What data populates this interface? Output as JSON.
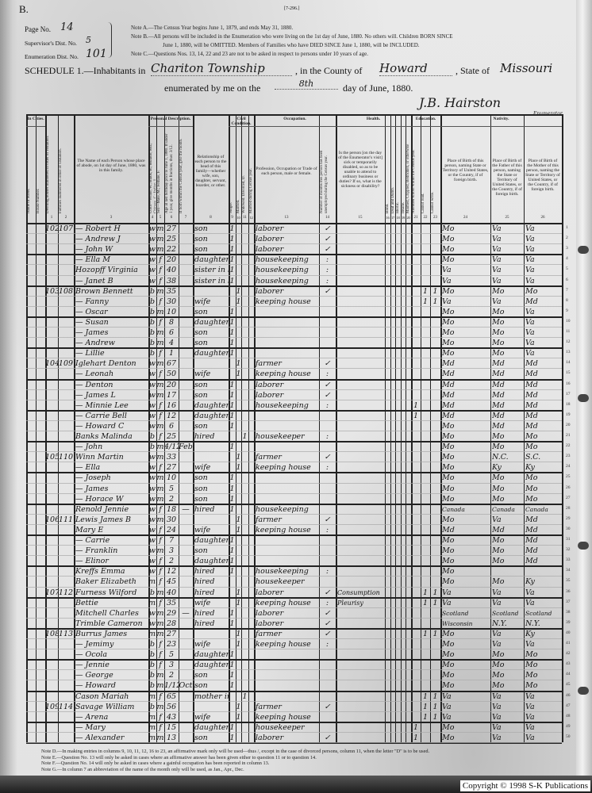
{
  "form": {
    "letter": "B.",
    "form_number": "[7-296.]",
    "page_label": "Page No.",
    "page_value": "14",
    "supervisor_label": "Supervisor's Dist. No.",
    "supervisor_value": "5",
    "enumeration_label": "Enumeration Dist. No.",
    "enumeration_value": "101",
    "note_a": "Note A.—The Census Year begins June 1, 1879, and ends May 31, 1880.",
    "note_b1": "Note B.—All persons will be included in the Enumeration who were living on the 1st day of June, 1880. No others will. Children BORN SINCE",
    "note_b2": "June 1, 1880, will be OMITTED. Members of Families who have DIED SINCE June 1, 1880, will be INCLUDED.",
    "note_c": "Note C.—Questions Nos. 13, 14, 22 and 23 are not to be asked in respect to persons under 10 years of age.",
    "schedule_label": "SCHEDULE 1.—Inhabitants in",
    "township": "Chariton Township",
    "county_label": ", in the County of",
    "county": "Howard",
    "state_label": ", State of",
    "state": "Missouri",
    "enumerated_label": "enumerated by me on the",
    "day": "8th",
    "date_suffix": "day of June, 1880.",
    "enumerator_signature": "J.B. Hairston",
    "enumerator_label": "Enumerator."
  },
  "headers": {
    "in_cities": "In Cities.",
    "street": "Name of Street.",
    "house": "House Number.",
    "dwelling": "Dwelling houses numbered in order of visitation.",
    "family": "Families numbered in order of visitation.",
    "name": "The Name of each Person whose place of abode, on 1st day of June, 1880, was in this family.",
    "personal": "Personal Description.",
    "color": "Color—White, W.; Black, B.; Mulatto, Mu.; Chinese, C.; Indian, I.",
    "sex": "Sex—Male, M.; Female, F.",
    "age": "Age at last birthday prior to June 1, 1880. If under 1 year, give months in fractions, thus: 3/12.",
    "month": "If born within the Census year, give the month.",
    "relation": "Relationship of each person to the head of this family—whether wife, son, daughter, servant, boarder, or other.",
    "civil": "Civil Condition.",
    "single": "Single.",
    "married": "Married.",
    "widowed": "Widowed. Divorced, D.",
    "married_year": "Married during Census year.",
    "occupation_group": "Occupation.",
    "occupation": "Profession, Occupation or Trade of each person, male or female.",
    "unemployed": "Number of months this person has been unemployed during the Census year.",
    "health": "Health.",
    "sickness": "Is the person [on the day of the Enumerator's visit] sick or temporarily disabled, so as to be unable to attend to ordinary business or duties? If so, what is the sickness or disability?",
    "blind": "Blind.",
    "deaf": "Deaf and Dumb.",
    "idiotic": "Idiotic.",
    "insane": "Insane.",
    "maimed": "Maimed, Crippled, Bedridden, or otherwise disabled.",
    "education": "Education.",
    "school": "Attended school within the Census year.",
    "cannot_read": "Cannot read.",
    "cannot_write": "Cannot write.",
    "nativity": "Nativity.",
    "birthplace": "Place of Birth of this person, naming State or Territory of United States, or the Country, if of foreign birth.",
    "father_birthplace": "Place of Birth of the Father of this person, naming the State or Territory of United States, or the Country, if of foreign birth.",
    "mother_birthplace": "Place of Birth of the Mother of this person, naming the State or Territory of United States, or the Country, if of foreign birth."
  },
  "column_numbers": [
    "1",
    "2",
    "3",
    "4",
    "5",
    "6",
    "7",
    "8",
    "9",
    "10",
    "11",
    "12",
    "13",
    "14",
    "15",
    "16",
    "17",
    "18",
    "19",
    "20",
    "21",
    "22",
    "23",
    "24",
    "25",
    "26"
  ],
  "rows": [
    {
      "d": "102",
      "f": "107",
      "name": "— Robert H",
      "color": "w",
      "sex": "m",
      "age": "27",
      "rel": "son",
      "s": "1",
      "occ": "laborer",
      "chk": "✓",
      "bp": "Mo",
      "fbp": "Va",
      "mbp": "Va"
    },
    {
      "name": "— Andrew J",
      "color": "w",
      "sex": "m",
      "age": "25",
      "rel": "son",
      "s": "1",
      "occ": "laborer",
      "chk": "✓",
      "bp": "Mo",
      "fbp": "Va",
      "mbp": "Va"
    },
    {
      "name": "— John W",
      "color": "w",
      "sex": "m",
      "age": "22",
      "rel": "son",
      "s": "1",
      "occ": "laborer",
      "chk": "✓",
      "bp": "Mo",
      "fbp": "Va",
      "mbp": "Va"
    },
    {
      "name": "— Ella M",
      "color": "w",
      "sex": "f",
      "age": "20",
      "rel": "daughter",
      "s": "1",
      "occ": "housekeeping",
      "chk": ":",
      "bp": "Mo",
      "fbp": "Va",
      "mbp": "Va"
    },
    {
      "name": "Hozopff Virginia",
      "color": "w",
      "sex": "f",
      "age": "40",
      "rel": "sister in law",
      "s": "1",
      "occ": "housekeeping",
      "chk": ":",
      "bp": "Va",
      "fbp": "Va",
      "mbp": "Va"
    },
    {
      "name": "— Janet B",
      "color": "w",
      "sex": "f",
      "age": "38",
      "rel": "sister in law",
      "s": "1",
      "occ": "housekeeping",
      "chk": ":",
      "bp": "Va",
      "fbp": "Va",
      "mbp": "Va"
    },
    {
      "d": "103",
      "f": "108",
      "name": "Brown Bennett",
      "color": "b",
      "sex": "m",
      "age": "35",
      "m": "1",
      "occ": "laborer",
      "chk": "✓",
      "rd": "1",
      "wr": "1",
      "bp": "Mo",
      "fbp": "Mo",
      "mbp": "Mo"
    },
    {
      "name": "— Fanny",
      "color": "b",
      "sex": "f",
      "age": "30",
      "rel": "wife",
      "m": "1",
      "occ": "keeping house",
      "rd": "1",
      "wr": "1",
      "bp": "Va",
      "fbp": "Va",
      "mbp": "Md"
    },
    {
      "name": "— Oscar",
      "color": "b",
      "sex": "m",
      "age": "10",
      "rel": "son",
      "s": "1",
      "bp": "Mo",
      "fbp": "Mo",
      "mbp": "Va"
    },
    {
      "name": "— Susan",
      "color": "b",
      "sex": "f",
      "age": "8",
      "rel": "daughter",
      "s": "1",
      "bp": "Mo",
      "fbp": "Mo",
      "mbp": "Va"
    },
    {
      "name": "— James",
      "color": "b",
      "sex": "m",
      "age": "6",
      "rel": "son",
      "s": "1",
      "bp": "Mo",
      "fbp": "Mo",
      "mbp": "Va"
    },
    {
      "name": "— Andrew",
      "color": "b",
      "sex": "m",
      "age": "4",
      "rel": "son",
      "s": "1",
      "bp": "Mo",
      "fbp": "Mo",
      "mbp": "Va"
    },
    {
      "name": "— Lillie",
      "color": "b",
      "sex": "f",
      "age": "1",
      "rel": "daughter",
      "s": "1",
      "bp": "Mo",
      "fbp": "Mo",
      "mbp": "Va"
    },
    {
      "d": "104",
      "f": "109",
      "name": "Iglehart Denton",
      "color": "w",
      "sex": "m",
      "age": "67",
      "m": "1",
      "occ": "farmer",
      "chk": "✓",
      "bp": "Md",
      "fbp": "Md",
      "mbp": "Md"
    },
    {
      "name": "— Leonah",
      "color": "w",
      "sex": "f",
      "age": "50",
      "rel": "wife",
      "m": "1",
      "occ": "keeping house",
      "chk": ":",
      "bp": "Md",
      "fbp": "Md",
      "mbp": "Md"
    },
    {
      "name": "— Denton",
      "color": "w",
      "sex": "m",
      "age": "20",
      "rel": "son",
      "s": "1",
      "occ": "laborer",
      "chk": "✓",
      "bp": "Md",
      "fbp": "Md",
      "mbp": "Md"
    },
    {
      "name": "— James L",
      "color": "w",
      "sex": "m",
      "age": "17",
      "rel": "son",
      "s": "1",
      "occ": "laborer",
      "chk": "✓",
      "bp": "Md",
      "fbp": "Md",
      "mbp": "Md"
    },
    {
      "name": "— Minnie Lee",
      "color": "w",
      "sex": "f",
      "age": "16",
      "rel": "daughter",
      "s": "1",
      "occ": "housekeeping",
      "chk": ":",
      "sch": "1",
      "bp": "Md",
      "fbp": "Md",
      "mbp": "Md"
    },
    {
      "name": "— Carrie Bell",
      "color": "w",
      "sex": "f",
      "age": "12",
      "rel": "daughter",
      "s": "1",
      "sch": "1",
      "bp": "Md",
      "fbp": "Md",
      "mbp": "Md"
    },
    {
      "name": "— Howard C",
      "color": "w",
      "sex": "m",
      "age": "6",
      "rel": "son",
      "s": "1",
      "bp": "Mo",
      "fbp": "Md",
      "mbp": "Md"
    },
    {
      "name": "Banks Malinda",
      "color": "b",
      "sex": "f",
      "age": "25",
      "rel": "hired",
      "w": "1",
      "occ": "housekeeper",
      "chk": ":",
      "bp": "Mo",
      "fbp": "Mo",
      "mbp": "Mo"
    },
    {
      "name": "— John",
      "color": "b",
      "sex": "m",
      "age": "4/12",
      "month": "Feb",
      "s": "1",
      "bp": "Mo",
      "fbp": "Mo",
      "mbp": "Mo"
    },
    {
      "d": "105",
      "f": "110",
      "name": "Winn Martin",
      "color": "w",
      "sex": "m",
      "age": "33",
      "m": "1",
      "occ": "farmer",
      "chk": "✓",
      "bp": "Mo",
      "fbp": "N.C.",
      "mbp": "S.C."
    },
    {
      "name": "— Ella",
      "color": "w",
      "sex": "f",
      "age": "27",
      "rel": "wife",
      "m": "1",
      "occ": "keeping house",
      "chk": ":",
      "bp": "Mo",
      "fbp": "Ky",
      "mbp": "Ky"
    },
    {
      "name": "— Joseph",
      "color": "w",
      "sex": "m",
      "age": "10",
      "rel": "son",
      "s": "1",
      "bp": "Mo",
      "fbp": "Mo",
      "mbp": "Mo"
    },
    {
      "name": "— James",
      "color": "w",
      "sex": "m",
      "age": "5",
      "rel": "son",
      "s": "1",
      "bp": "Mo",
      "fbp": "Mo",
      "mbp": "Mo"
    },
    {
      "name": "— Horace W",
      "color": "w",
      "sex": "m",
      "age": "2",
      "rel": "son",
      "s": "1",
      "bp": "Mo",
      "fbp": "Mo",
      "mbp": "Mo"
    },
    {
      "name": "Renold Jennie",
      "color": "w",
      "sex": "f",
      "age": "18",
      "month": "—",
      "rel": "hired",
      "s": "1",
      "occ": "housekeeping",
      "bp": "Canada",
      "fbp": "Canada",
      "mbp": "Canada"
    },
    {
      "d": "106",
      "f": "111",
      "name": "Lewis James B",
      "color": "w",
      "sex": "m",
      "age": "30",
      "m": "1",
      "occ": "farmer",
      "chk": "✓",
      "bp": "Mo",
      "fbp": "Va",
      "mbp": "Md"
    },
    {
      "name": "Mary E",
      "color": "w",
      "sex": "f",
      "age": "24",
      "rel": "wife",
      "m": "1",
      "occ": "keeping house",
      "chk": ":",
      "bp": "Md",
      "fbp": "Md",
      "mbp": "Md"
    },
    {
      "name": "— Carrie",
      "color": "w",
      "sex": "f",
      "age": "7",
      "rel": "daughter",
      "s": "1",
      "bp": "Mo",
      "fbp": "Mo",
      "mbp": "Md"
    },
    {
      "name": "— Franklin",
      "color": "w",
      "sex": "m",
      "age": "3",
      "rel": "son",
      "s": "1",
      "bp": "Mo",
      "fbp": "Mo",
      "mbp": "Md"
    },
    {
      "name": "— Elinor",
      "color": "w",
      "sex": "f",
      "age": "2",
      "rel": "daughter",
      "s": "1",
      "bp": "Mo",
      "fbp": "Mo",
      "mbp": "Md"
    },
    {
      "name": "Kreffs Emma",
      "color": "w",
      "sex": "f",
      "age": "12",
      "rel": "hired",
      "s": "1",
      "occ": "housekeeping",
      "chk": ":",
      "bp": "Mo"
    },
    {
      "name": "Baker Elizabeth",
      "color": "mu",
      "sex": "f",
      "age": "45",
      "rel": "hired",
      "occ": "housekeeper",
      "bp": "Mo",
      "fbp": "Mo",
      "mbp": "Ky"
    },
    {
      "d": "107",
      "f": "112",
      "name": "Furness Wilford",
      "color": "b",
      "sex": "m",
      "age": "40",
      "rel": "hired",
      "m": "1",
      "occ": "laborer",
      "chk": "✓",
      "sick": "Consumption",
      "rd": "1",
      "wr": "1",
      "bp": "Va",
      "fbp": "Va",
      "mbp": "Va"
    },
    {
      "name": "Bettie",
      "color": "mu",
      "sex": "f",
      "age": "35",
      "rel": "wife",
      "m": "1",
      "occ": "keeping house",
      "chk": ":",
      "sick": "Pleurisy",
      "rd": "1",
      "wr": "1",
      "bp": "Va",
      "fbp": "Va",
      "mbp": "Va"
    },
    {
      "name": "Mitchell Charles",
      "color": "w",
      "sex": "m",
      "age": "29",
      "month": "—",
      "rel": "hired",
      "s": "1",
      "occ": "laborer",
      "chk": "✓",
      "bp": "Scotland",
      "fbp": "Scotland",
      "mbp": "Scotland"
    },
    {
      "name": "Trimble Cameron",
      "color": "w",
      "sex": "m",
      "age": "28",
      "rel": "hired",
      "s": "1",
      "occ": "laborer",
      "chk": "✓",
      "bp": "Wisconsin",
      "fbp": "N.Y.",
      "mbp": "N.Y."
    },
    {
      "d": "108",
      "f": "113",
      "name": "Burrus James",
      "color": "mu",
      "sex": "m",
      "age": "27",
      "m": "1",
      "occ": "farmer",
      "chk": "✓",
      "rd": "1",
      "wr": "1",
      "bp": "Mo",
      "fbp": "Va",
      "mbp": "Ky"
    },
    {
      "name": "— Jemimy",
      "color": "b",
      "sex": "f",
      "age": "23",
      "rel": "wife",
      "m": "1",
      "occ": "keeping house",
      "chk": ":",
      "bp": "Mo",
      "fbp": "Va",
      "mbp": "Va"
    },
    {
      "name": "— Ocola",
      "color": "b",
      "sex": "f",
      "age": "5",
      "rel": "daughter",
      "s": "1",
      "bp": "Mo",
      "fbp": "Mo",
      "mbp": "Mo"
    },
    {
      "name": "— Jennie",
      "color": "b",
      "sex": "f",
      "age": "3",
      "rel": "daughter",
      "s": "1",
      "bp": "Mo",
      "fbp": "Mo",
      "mbp": "Mo"
    },
    {
      "name": "— George",
      "color": "b",
      "sex": "m",
      "age": "2",
      "rel": "son",
      "s": "1",
      "bp": "Mo",
      "fbp": "Mo",
      "mbp": "Mo"
    },
    {
      "name": "— Howard",
      "color": "b",
      "sex": "m",
      "age": "1/12",
      "month": "Oct",
      "rel": "son",
      "s": "1",
      "bp": "Mo",
      "fbp": "Mo",
      "mbp": "Mo"
    },
    {
      "name": "Cason Mariah",
      "color": "mu",
      "sex": "f",
      "age": "65",
      "rel": "mother in law",
      "w": "1",
      "rd": "1",
      "wr": "1",
      "bp": "Va",
      "fbp": "Va",
      "mbp": "Va"
    },
    {
      "d": "109",
      "f": "114",
      "name": "Savage William",
      "color": "b",
      "sex": "m",
      "age": "56",
      "m": "1",
      "occ": "farmer",
      "chk": "✓",
      "rd": "1",
      "wr": "1",
      "bp": "Va",
      "fbp": "Va",
      "mbp": "Va"
    },
    {
      "name": "— Arena",
      "color": "mu",
      "sex": "f",
      "age": "43",
      "rel": "wife",
      "m": "1",
      "occ": "keeping house",
      "rd": "1",
      "wr": "1",
      "bp": "Va",
      "fbp": "Va",
      "mbp": "Va"
    },
    {
      "name": "— Mary",
      "color": "mu",
      "sex": "f",
      "age": "15",
      "rel": "daughter",
      "s": "1",
      "occ": "housekeeper",
      "sch": "1",
      "bp": "Mo",
      "fbp": "Va",
      "mbp": "Va"
    },
    {
      "name": "— Alexander",
      "color": "mu",
      "sex": "m",
      "age": "13",
      "rel": "son",
      "s": "1",
      "occ": "laborer",
      "chk": "✓",
      "sch": "1",
      "bp": "Mo",
      "fbp": "Va",
      "mbp": "Va"
    }
  ],
  "footer_notes": {
    "note_d": "Note D.—In making entries in columns 9, 10, 11, 12, 16 to 23, an affirmative mark only will be used—thus /, except in the case of divorced persons, column 11, when the letter \"D\" is to be used.",
    "note_e": "Note E.—Question No. 13 will only be asked in cases where an affirmative answer has been given either to question 11 or to question 14.",
    "note_f": "Note F.—Question No. 14 will only be asked in cases where a gainful occupation has been reported in column 13.",
    "note_g": "Note G.—In column 7 an abbreviation of the name of the month only will be used, as Jan., Apr., Dec."
  },
  "copyright": "Copyright © 1998 S-K Publications"
}
